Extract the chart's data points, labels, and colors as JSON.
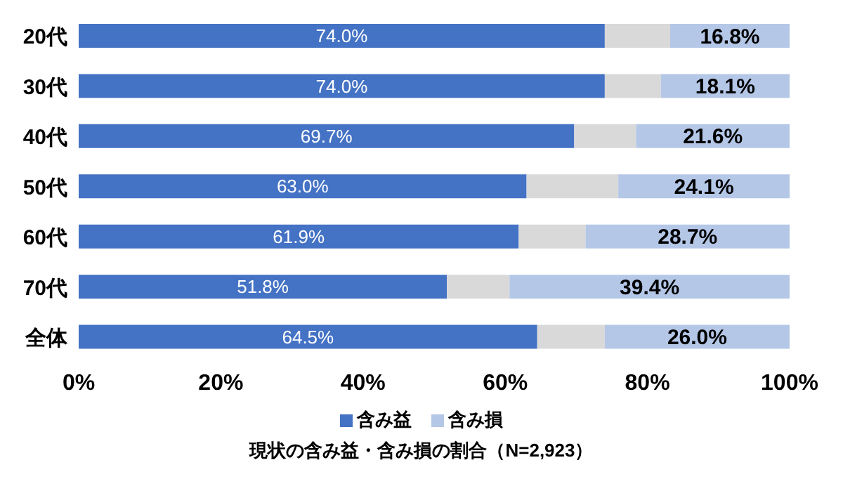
{
  "chart_data": {
    "type": "bar",
    "orientation": "horizontal",
    "stacked": true,
    "title": "現状の含み益・含み損の割合（N=2,923）",
    "categories": [
      "20代",
      "30代",
      "40代",
      "50代",
      "60代",
      "70代",
      "全体"
    ],
    "series": [
      {
        "name": "含み益",
        "color": "#4472c4",
        "values": [
          74.0,
          74.0,
          69.7,
          63.0,
          61.9,
          51.8,
          64.5
        ],
        "value_labels": [
          "74.0%",
          "74.0%",
          "69.7%",
          "63.0%",
          "61.9%",
          "51.8%",
          "64.5%"
        ]
      },
      {
        "color": "#d9d9d9",
        "values": [
          9.2,
          7.9,
          8.7,
          12.9,
          9.4,
          8.8,
          9.5
        ]
      },
      {
        "name": "含み損",
        "color": "#b4c7e7",
        "values": [
          16.8,
          18.1,
          21.6,
          24.1,
          28.7,
          39.4,
          26.0
        ],
        "value_labels": [
          "16.8%",
          "18.1%",
          "21.6%",
          "24.1%",
          "28.7%",
          "39.4%",
          "26.0%"
        ]
      }
    ],
    "xlim": [
      0,
      100
    ],
    "xticks": [
      {
        "value": 0,
        "label": "0%"
      },
      {
        "value": 20,
        "label": "20%"
      },
      {
        "value": 40,
        "label": "40%"
      },
      {
        "value": 60,
        "label": "60%"
      },
      {
        "value": 80,
        "label": "80%"
      },
      {
        "value": 100,
        "label": "100%"
      }
    ],
    "grid": false,
    "legend": "bottom"
  }
}
